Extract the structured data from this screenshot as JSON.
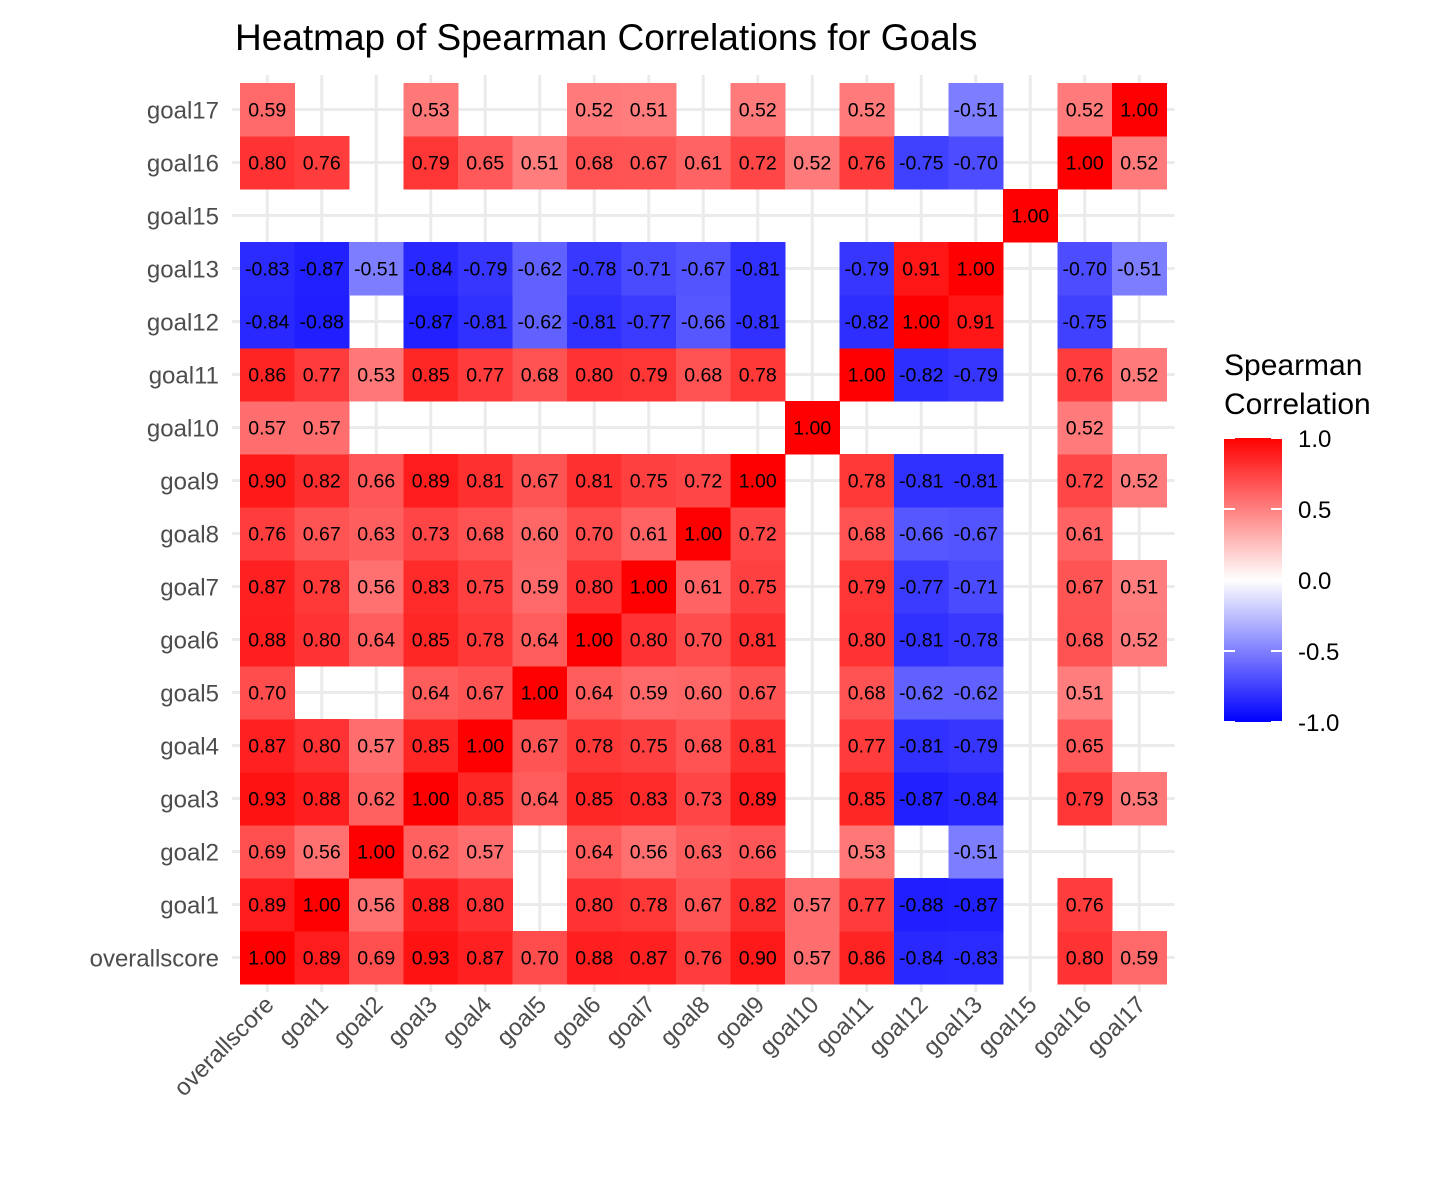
{
  "chart_data": {
    "type": "heatmap",
    "title": "Heatmap of Spearman Correlations for Goals",
    "variables": [
      "overallscore",
      "goal1",
      "goal2",
      "goal3",
      "goal4",
      "goal5",
      "goal6",
      "goal7",
      "goal8",
      "goal9",
      "goal10",
      "goal11",
      "goal12",
      "goal13",
      "goal15",
      "goal16",
      "goal17"
    ],
    "matrix": [
      [
        1.0,
        0.89,
        0.69,
        0.93,
        0.87,
        0.7,
        0.88,
        0.87,
        0.76,
        0.9,
        0.57,
        0.86,
        -0.84,
        -0.83,
        null,
        0.8,
        0.59
      ],
      [
        0.89,
        1.0,
        0.56,
        0.88,
        0.8,
        null,
        0.8,
        0.78,
        0.67,
        0.82,
        0.57,
        0.77,
        -0.88,
        -0.87,
        null,
        0.76,
        null
      ],
      [
        0.69,
        0.56,
        1.0,
        0.62,
        0.57,
        null,
        0.64,
        0.56,
        0.63,
        0.66,
        null,
        0.53,
        null,
        -0.51,
        null,
        null,
        null
      ],
      [
        0.93,
        0.88,
        0.62,
        1.0,
        0.85,
        0.64,
        0.85,
        0.83,
        0.73,
        0.89,
        null,
        0.85,
        -0.87,
        -0.84,
        null,
        0.79,
        0.53
      ],
      [
        0.87,
        0.8,
        0.57,
        0.85,
        1.0,
        0.67,
        0.78,
        0.75,
        0.68,
        0.81,
        null,
        0.77,
        -0.81,
        -0.79,
        null,
        0.65,
        null
      ],
      [
        0.7,
        null,
        null,
        0.64,
        0.67,
        1.0,
        0.64,
        0.59,
        0.6,
        0.67,
        null,
        0.68,
        -0.62,
        -0.62,
        null,
        0.51,
        null
      ],
      [
        0.88,
        0.8,
        0.64,
        0.85,
        0.78,
        0.64,
        1.0,
        0.8,
        0.7,
        0.81,
        null,
        0.8,
        -0.81,
        -0.78,
        null,
        0.68,
        0.52
      ],
      [
        0.87,
        0.78,
        0.56,
        0.83,
        0.75,
        0.59,
        0.8,
        1.0,
        0.61,
        0.75,
        null,
        0.79,
        -0.77,
        -0.71,
        null,
        0.67,
        0.51
      ],
      [
        0.76,
        0.67,
        0.63,
        0.73,
        0.68,
        0.6,
        0.7,
        0.61,
        1.0,
        0.72,
        null,
        0.68,
        -0.66,
        -0.67,
        null,
        0.61,
        null
      ],
      [
        0.9,
        0.82,
        0.66,
        0.89,
        0.81,
        0.67,
        0.81,
        0.75,
        0.72,
        1.0,
        null,
        0.78,
        -0.81,
        -0.81,
        null,
        0.72,
        0.52
      ],
      [
        0.57,
        0.57,
        null,
        null,
        null,
        null,
        null,
        null,
        null,
        null,
        1.0,
        null,
        null,
        null,
        null,
        0.52,
        null
      ],
      [
        0.86,
        0.77,
        0.53,
        0.85,
        0.77,
        0.68,
        0.8,
        0.79,
        0.68,
        0.78,
        null,
        1.0,
        -0.82,
        -0.79,
        null,
        0.76,
        0.52
      ],
      [
        -0.84,
        -0.88,
        null,
        -0.87,
        -0.81,
        -0.62,
        -0.81,
        -0.77,
        -0.66,
        -0.81,
        null,
        -0.82,
        1.0,
        0.91,
        null,
        -0.75,
        null
      ],
      [
        -0.83,
        -0.87,
        -0.51,
        -0.84,
        -0.79,
        -0.62,
        -0.78,
        -0.71,
        -0.67,
        -0.81,
        null,
        -0.79,
        0.91,
        1.0,
        null,
        -0.7,
        -0.51
      ],
      [
        null,
        null,
        null,
        null,
        null,
        null,
        null,
        null,
        null,
        null,
        null,
        null,
        null,
        null,
        1.0,
        null,
        null
      ],
      [
        0.8,
        0.76,
        null,
        0.79,
        0.65,
        0.51,
        0.68,
        0.67,
        0.61,
        0.72,
        0.52,
        0.76,
        -0.75,
        -0.7,
        null,
        1.0,
        0.52
      ],
      [
        0.59,
        null,
        null,
        0.53,
        null,
        null,
        0.52,
        0.51,
        null,
        0.52,
        null,
        0.52,
        null,
        -0.51,
        null,
        0.52,
        1.0
      ]
    ],
    "xlabel": "",
    "ylabel": "",
    "value_range": [
      -1,
      1
    ],
    "grid": true,
    "legend": {
      "title_lines": [
        "Spearman",
        "Correlation"
      ],
      "placement": "right",
      "ticks": [
        1.0,
        0.5,
        0.0,
        -0.5,
        -1.0
      ],
      "tick_labels": [
        "1.0",
        "0.5",
        "0.0",
        "-0.5",
        "-1.0"
      ],
      "colors": {
        "low": "#0000ff",
        "mid": "#ffffff",
        "high": "#ff0000"
      }
    }
  }
}
